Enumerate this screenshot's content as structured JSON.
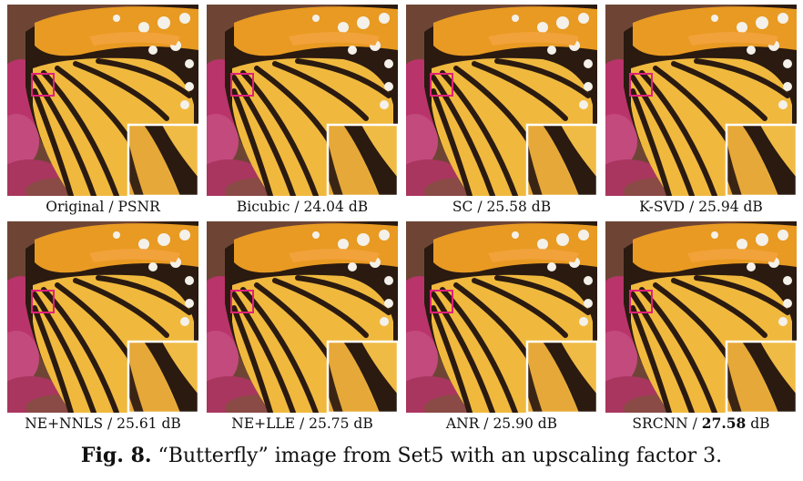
{
  "panels": [
    {
      "method": "Original",
      "sep": " / ",
      "value": "PSNR",
      "bold": false
    },
    {
      "method": "Bicubic",
      "sep": " / ",
      "value": "24.04 dB",
      "bold": false
    },
    {
      "method": "SC",
      "sep": " / ",
      "value": "25.58 dB",
      "bold": false
    },
    {
      "method": "K-SVD",
      "sep": " / ",
      "value": "25.94 dB",
      "bold": false
    },
    {
      "method": "NE+NNLS",
      "sep": " / ",
      "value": "25.61 dB",
      "bold": false
    },
    {
      "method": "NE+LLE",
      "sep": " / ",
      "value": "25.75 dB",
      "bold": false
    },
    {
      "method": "ANR",
      "sep": " / ",
      "value": "25.90 dB",
      "bold": false
    },
    {
      "method": "SRCNN",
      "sep": " / ",
      "value": "27.58",
      "unit": " dB",
      "bold": true
    }
  ],
  "figure": {
    "label": "Fig. 8.",
    "text": "“Butterfly” image from Set5 with an upscaling factor 3."
  },
  "colors": {
    "wing_yellow": "#f0b83a",
    "wing_black": "#2a1a10",
    "wing_orange": "#e8901e",
    "flower_pink": "#c8386e",
    "background_brown": "#7a4a35",
    "marker_box": "#e0207a",
    "inset_border": "#ffffff"
  }
}
